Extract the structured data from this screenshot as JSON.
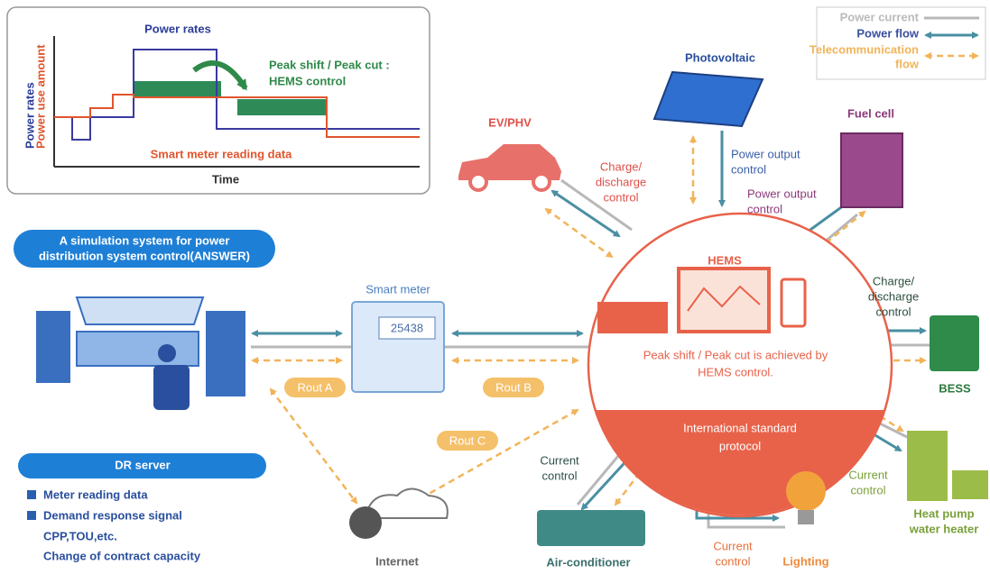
{
  "inset": {
    "title": "Power rates",
    "annotation": [
      "Peak shift / Peak cut :",
      "HEMS control"
    ],
    "y_labels": [
      "Power rates",
      "Power use amount"
    ],
    "series_label": "Smart meter reading data",
    "x_label": "Time"
  },
  "legend": {
    "power_current": "Power current",
    "power_flow": "Power flow",
    "telecom": [
      "Telecommunication",
      "flow"
    ]
  },
  "nodes": {
    "photovoltaic": {
      "label": "Photovoltaic",
      "control": [
        "Power output",
        "control"
      ]
    },
    "fuel_cell": {
      "label": "Fuel cell",
      "control": [
        "Power output",
        "control"
      ]
    },
    "ev": {
      "label": "EV/PHV",
      "control": [
        "Charge/",
        "discharge",
        "control"
      ]
    },
    "hems": {
      "label": "HEMS",
      "note": [
        "Peak shift / Peak cut is achieved by",
        "HEMS control."
      ],
      "protocol": [
        "International standard",
        "protocol"
      ]
    },
    "bess": {
      "label": "BESS",
      "control": [
        "Charge/",
        "discharge",
        "control"
      ]
    },
    "heat_pump": {
      "label": [
        "Heat pump",
        "water heater"
      ],
      "control": [
        "Current",
        "control"
      ]
    },
    "lighting": {
      "label": "Lighting",
      "control": [
        "Current",
        "control"
      ]
    },
    "air_conditioner": {
      "label": "Air-conditioner",
      "control": [
        "Current",
        "control"
      ]
    },
    "internet": {
      "label": "Internet"
    },
    "smart_meter": {
      "label": "Smart meter",
      "display": "25438"
    }
  },
  "routes": [
    "Rout A",
    "Rout B",
    "Rout C"
  ],
  "answer": {
    "title": [
      "A simulation system for power",
      "distribution system control(ANSWER)"
    ]
  },
  "dr_server": {
    "title": "DR server",
    "items": [
      "Meter reading data",
      "Demand response signal"
    ],
    "details": [
      "CPP,TOU,etc.",
      "Change of contract capacity"
    ]
  }
}
